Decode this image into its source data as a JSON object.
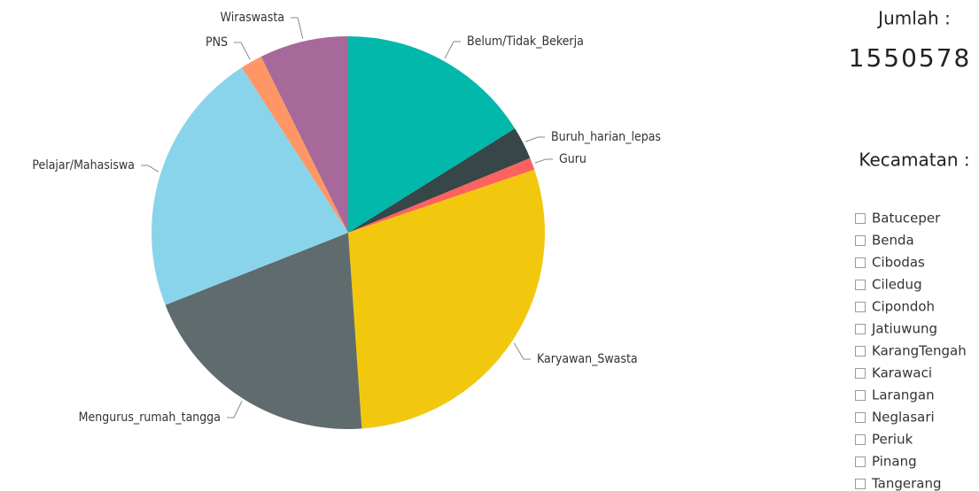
{
  "chart_data": {
    "type": "pie",
    "categories": [
      "Belum/Tidak_Bekerja",
      "Buruh_harian_lepas",
      "Guru",
      "Karyawan_Swasta",
      "Mengurus_rumah_tangga",
      "Pelajar/Mahasiswa",
      "PNS",
      "Wiraswasta"
    ],
    "values": [
      16.1,
      2.7,
      1.0,
      29.1,
      20.1,
      21.9,
      1.8,
      7.3
    ],
    "colors": [
      "#01B8AA",
      "#374649",
      "#FD625E",
      "#F2C80F",
      "#5F6B6D",
      "#8AD4EB",
      "#FE9666",
      "#A66999"
    ]
  },
  "card": {
    "label": "Jumlah :",
    "value": "1550578"
  },
  "slicer": {
    "title": "Kecamatan :",
    "items": [
      "Batuceper",
      "Benda",
      "Cibodas",
      "Ciledug",
      "Cipondoh",
      "Jatiuwung",
      "KarangTengah",
      "Karawaci",
      "Larangan",
      "Neglasari",
      "Periuk",
      "Pinang",
      "Tangerang"
    ]
  }
}
